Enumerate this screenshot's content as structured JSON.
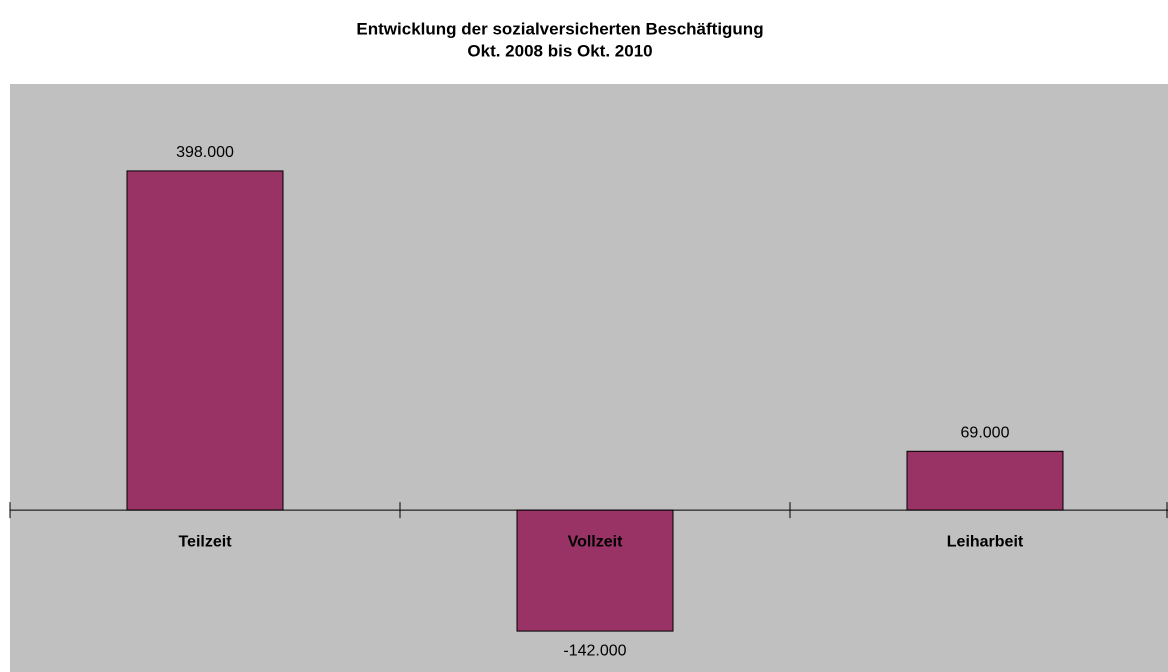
{
  "chart_data": {
    "type": "bar",
    "title": "Entwicklung der sozialversicherten Beschäftigung",
    "subtitle": "Okt. 2008 bis Okt. 2010",
    "categories": [
      "Teilzeit",
      "Vollzeit",
      "Leiharbeit"
    ],
    "values": [
      398000,
      -142000,
      69000
    ],
    "value_labels": [
      "398.000",
      "-142.000",
      "69.000"
    ],
    "color": "#993366",
    "ylim": [
      -190000,
      500000
    ],
    "grid": false
  }
}
